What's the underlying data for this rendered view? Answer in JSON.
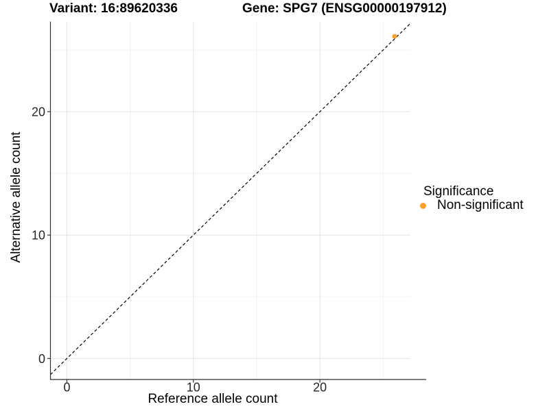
{
  "titles": {
    "left": "Variant: 16:89620336",
    "right": "Gene: SPG7 (ENSG00000197912)"
  },
  "chart_data": {
    "type": "scatter",
    "title": "Variant: 16:89620336   Gene: SPG7 (ENSG00000197912)",
    "xlabel": "Reference allele count",
    "ylabel": "Alternative allele count",
    "xlim": [
      -1.3,
      27.15
    ],
    "ylim": [
      -1.7,
      27.3
    ],
    "x_ticks": {
      "major": [
        0,
        10,
        20
      ],
      "minor": [
        5,
        15,
        25
      ]
    },
    "y_ticks": {
      "major": [
        0,
        10,
        20
      ],
      "minor": [
        5,
        15,
        25
      ]
    },
    "grid": true,
    "identity_line": {
      "slope": 1,
      "intercept": 0,
      "style": "dashed",
      "color": "#000000"
    },
    "series": [
      {
        "name": "Non-significant",
        "color": "#F9A12B",
        "points": [
          {
            "x": 25.9,
            "y": 26.1
          }
        ]
      }
    ],
    "legend": {
      "title": "Significance",
      "position": "right",
      "entries": [
        {
          "label": "Non-significant",
          "color": "#F9A12B"
        }
      ]
    }
  },
  "colors": {
    "background": "#ffffff",
    "grid_major": "#E4E4E4",
    "grid_minor": "#F1F1F1",
    "axis_line": "#2F2F2F",
    "tick_label": "#262626",
    "point": "#F9A12B"
  }
}
